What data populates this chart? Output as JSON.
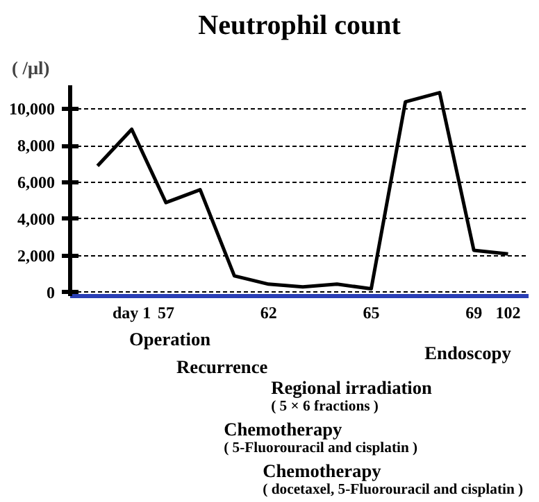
{
  "chart_data": {
    "type": "line",
    "title": "Neutrophil count",
    "ylabel": "( /μl)",
    "categories": [
      null,
      "day 1",
      "57",
      null,
      null,
      "62",
      null,
      null,
      "65",
      null,
      null,
      "69",
      "102"
    ],
    "series": [
      {
        "color": "#000000",
        "values": [
          6900,
          8900,
          4900,
          5600,
          900,
          450,
          300,
          450,
          200,
          10400,
          10900,
          2300,
          2100
        ]
      }
    ],
    "ylim": [
      -200,
      11300
    ],
    "yticks": [
      {
        "value": 0,
        "label": "0"
      },
      {
        "value": 2000,
        "label": "2,000"
      },
      {
        "value": 4000,
        "label": "4,000"
      },
      {
        "value": 6000,
        "label": "6,000"
      },
      {
        "value": 8000,
        "label": "8,000"
      },
      {
        "value": 10000,
        "label": "10,000"
      }
    ],
    "grid": "y",
    "line_style": "solid",
    "annotations": [
      "Operation",
      "Recurrence",
      "Endoscopy",
      "Regional irradiation ( 5 × 6 fractions )",
      "Chemotherapy ( 5-Fluorouracil and cisplatin )",
      "Chemotherapy ( docetaxel, 5-Fluorouracil and cisplatin )"
    ]
  }
}
